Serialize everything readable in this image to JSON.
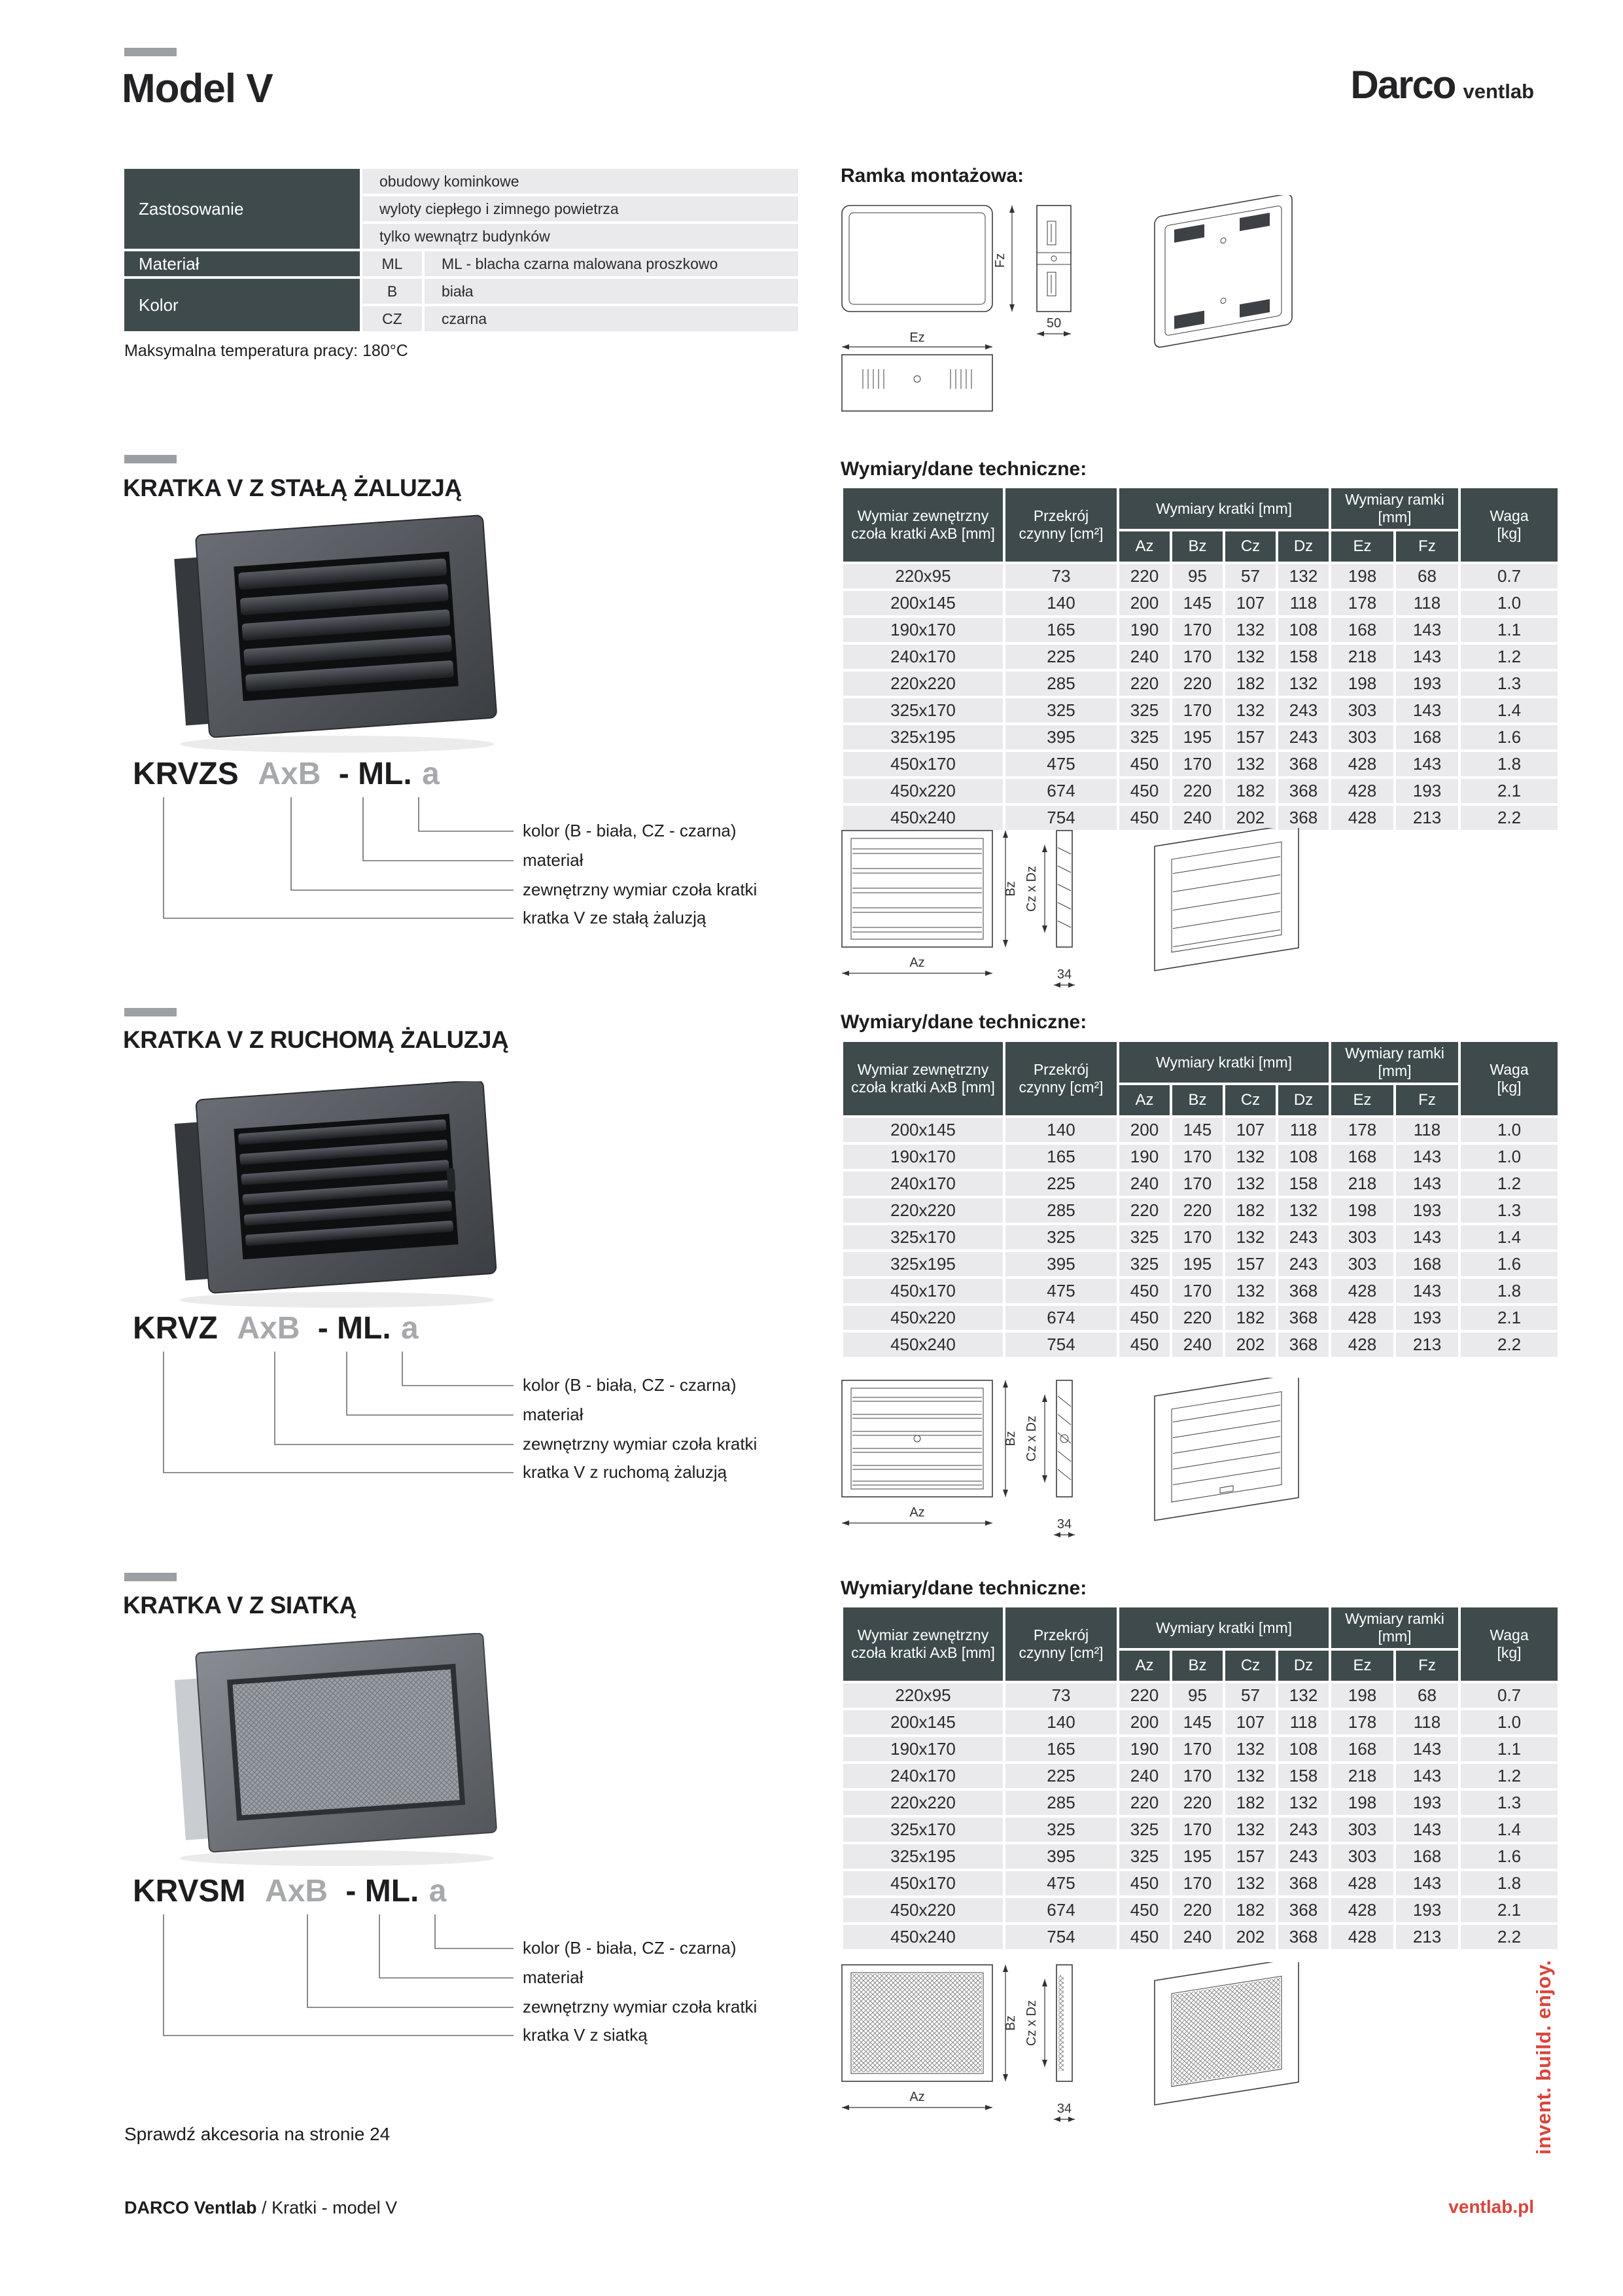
{
  "header": {
    "title": "Model V",
    "logo_main": "Darco",
    "logo_sub": "ventlab"
  },
  "properties": {
    "app_label": "Zastosowanie",
    "app_values": [
      "obudowy kominkowe",
      "wyloty ciepłego i zimnego powietrza",
      "tylko wewnątrz budynków"
    ],
    "material_label": "Materiał",
    "material_code": "ML",
    "material_desc": "ML - blacha czarna malowana proszkowo",
    "color_label": "Kolor",
    "color_rows": [
      {
        "code": "B",
        "desc": "biała"
      },
      {
        "code": "CZ",
        "desc": "czarna"
      }
    ],
    "max_temp": "Maksymalna temperatura pracy: 180°C"
  },
  "ramka": {
    "title": "Ramka montażowa:",
    "dim_fz": "Fz",
    "dim_ez": "Ez",
    "dim_depth": "50"
  },
  "table_header": {
    "dims_title": "Wymiary/dane techniczne:",
    "col_dim": "Wymiar zewnętrzny czoła kratki AxB [mm]",
    "col_area": "Przekrój czynny [cm²]",
    "grp_grille": "Wymiary kratki [mm]",
    "grp_frame": "Wymiary ramki [mm]",
    "subcols": [
      "Az",
      "Bz",
      "Cz",
      "Dz",
      "Ez",
      "Fz"
    ],
    "col_weight": "Waga [kg]"
  },
  "drawing_dims": {
    "az": "Az",
    "bz": "Bz",
    "czdz": "Cz x Dz",
    "depth": "34"
  },
  "sections": [
    {
      "title": "KRATKA V Z STAŁĄ ŻALUZJĄ",
      "code_parts": {
        "model": "KRVZS",
        "size": "AxB",
        "mat": "- ML.",
        "color": "a"
      },
      "labels": {
        "color": "kolor (B - biała, CZ - czarna)",
        "material": "materiał",
        "dimension": "zewnętrzny wymiar czoła kratki",
        "type": "kratka V ze stałą żaluzją"
      },
      "rows": [
        [
          "220x95",
          "73",
          "220",
          "95",
          "57",
          "132",
          "198",
          "68",
          "0.7"
        ],
        [
          "200x145",
          "140",
          "200",
          "145",
          "107",
          "118",
          "178",
          "118",
          "1.0"
        ],
        [
          "190x170",
          "165",
          "190",
          "170",
          "132",
          "108",
          "168",
          "143",
          "1.1"
        ],
        [
          "240x170",
          "225",
          "240",
          "170",
          "132",
          "158",
          "218",
          "143",
          "1.2"
        ],
        [
          "220x220",
          "285",
          "220",
          "220",
          "182",
          "132",
          "198",
          "193",
          "1.3"
        ],
        [
          "325x170",
          "325",
          "325",
          "170",
          "132",
          "243",
          "303",
          "143",
          "1.4"
        ],
        [
          "325x195",
          "395",
          "325",
          "195",
          "157",
          "243",
          "303",
          "168",
          "1.6"
        ],
        [
          "450x170",
          "475",
          "450",
          "170",
          "132",
          "368",
          "428",
          "143",
          "1.8"
        ],
        [
          "450x220",
          "674",
          "450",
          "220",
          "182",
          "368",
          "428",
          "193",
          "2.1"
        ],
        [
          "450x240",
          "754",
          "450",
          "240",
          "202",
          "368",
          "428",
          "213",
          "2.2"
        ]
      ]
    },
    {
      "title": "KRATKA V Z RUCHOMĄ ŻALUZJĄ",
      "code_parts": {
        "model": "KRVZ",
        "size": "AxB",
        "mat": "- ML.",
        "color": "a"
      },
      "labels": {
        "color": "kolor (B - biała, CZ - czarna)",
        "material": "materiał",
        "dimension": "zewnętrzny wymiar czoła kratki",
        "type": "kratka V z ruchomą żaluzją"
      },
      "rows": [
        [
          "200x145",
          "140",
          "200",
          "145",
          "107",
          "118",
          "178",
          "118",
          "1.0"
        ],
        [
          "190x170",
          "165",
          "190",
          "170",
          "132",
          "108",
          "168",
          "143",
          "1.0"
        ],
        [
          "240x170",
          "225",
          "240",
          "170",
          "132",
          "158",
          "218",
          "143",
          "1.2"
        ],
        [
          "220x220",
          "285",
          "220",
          "220",
          "182",
          "132",
          "198",
          "193",
          "1.3"
        ],
        [
          "325x170",
          "325",
          "325",
          "170",
          "132",
          "243",
          "303",
          "143",
          "1.4"
        ],
        [
          "325x195",
          "395",
          "325",
          "195",
          "157",
          "243",
          "303",
          "168",
          "1.6"
        ],
        [
          "450x170",
          "475",
          "450",
          "170",
          "132",
          "368",
          "428",
          "143",
          "1.8"
        ],
        [
          "450x220",
          "674",
          "450",
          "220",
          "182",
          "368",
          "428",
          "193",
          "2.1"
        ],
        [
          "450x240",
          "754",
          "450",
          "240",
          "202",
          "368",
          "428",
          "213",
          "2.2"
        ]
      ]
    },
    {
      "title": "KRATKA V Z SIATKĄ",
      "code_parts": {
        "model": "KRVSM",
        "size": "AxB",
        "mat": "- ML.",
        "color": "a"
      },
      "labels": {
        "color": "kolor (B - biała, CZ - czarna)",
        "material": "materiał",
        "dimension": "zewnętrzny wymiar czoła kratki",
        "type": "kratka V z siatką"
      },
      "rows": [
        [
          "220x95",
          "73",
          "220",
          "95",
          "57",
          "132",
          "198",
          "68",
          "0.7"
        ],
        [
          "200x145",
          "140",
          "200",
          "145",
          "107",
          "118",
          "178",
          "118",
          "1.0"
        ],
        [
          "190x170",
          "165",
          "190",
          "170",
          "132",
          "108",
          "168",
          "143",
          "1.1"
        ],
        [
          "240x170",
          "225",
          "240",
          "170",
          "132",
          "158",
          "218",
          "143",
          "1.2"
        ],
        [
          "220x220",
          "285",
          "220",
          "220",
          "182",
          "132",
          "198",
          "193",
          "1.3"
        ],
        [
          "325x170",
          "325",
          "325",
          "170",
          "132",
          "243",
          "303",
          "143",
          "1.4"
        ],
        [
          "325x195",
          "395",
          "325",
          "195",
          "157",
          "243",
          "303",
          "168",
          "1.6"
        ],
        [
          "450x170",
          "475",
          "450",
          "170",
          "132",
          "368",
          "428",
          "143",
          "1.8"
        ],
        [
          "450x220",
          "674",
          "450",
          "220",
          "182",
          "368",
          "428",
          "193",
          "2.1"
        ],
        [
          "450x240",
          "754",
          "450",
          "240",
          "202",
          "368",
          "428",
          "213",
          "2.2"
        ]
      ]
    }
  ],
  "footer": {
    "note": "Sprawdź akcesoria na stronie 24",
    "brand": "DARCO Ventlab",
    "divider": "/",
    "section": "Kratki - model V",
    "site": "ventlab.pl",
    "tagline": "invent. build. enjoy."
  },
  "colors": {
    "accent_red": "#d9453c",
    "header_dark": "#3e4a4c",
    "cell_gray": "#eaeaec"
  }
}
